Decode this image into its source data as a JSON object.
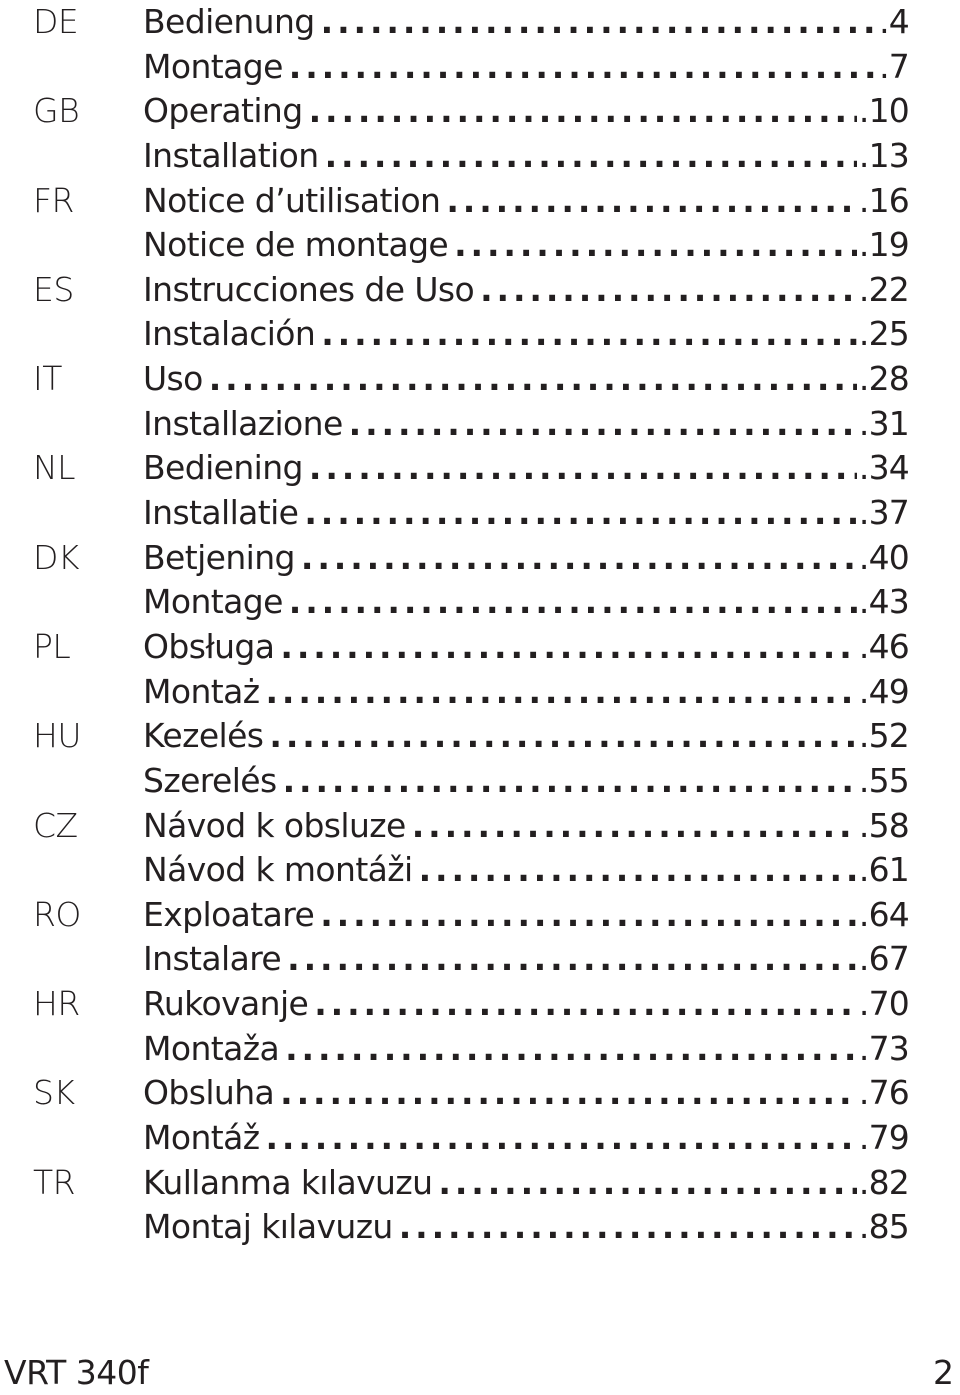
{
  "toc": [
    {
      "code": "DE",
      "title": "Bedienung",
      "page": ".4"
    },
    {
      "code": "",
      "title": "Montage",
      "page": ".7"
    },
    {
      "code": "GB",
      "title": "Operating",
      "page": ".10"
    },
    {
      "code": "",
      "title": "Installation",
      "page": ".13"
    },
    {
      "code": "FR",
      "title": "Notice d’utilisation",
      "page": ".16"
    },
    {
      "code": "",
      "title": "Notice de montage",
      "page": ".19"
    },
    {
      "code": "ES",
      "title": "Instrucciones de Uso",
      "page": ".22"
    },
    {
      "code": "",
      "title": "Instalación",
      "page": ".25"
    },
    {
      "code": "IT",
      "title": "Uso",
      "page": ".28"
    },
    {
      "code": "",
      "title": "Installazione",
      "page": ".31"
    },
    {
      "code": "NL",
      "title": "Bediening",
      "page": ".34"
    },
    {
      "code": "",
      "title": "Installatie",
      "page": ".37"
    },
    {
      "code": "DK",
      "title": "Betjening",
      "page": ".40"
    },
    {
      "code": "",
      "title": "Montage",
      "page": ".43"
    },
    {
      "code": "PL",
      "title": "Obsługa",
      "page": ".46"
    },
    {
      "code": "",
      "title": "Montaż",
      "page": ".49"
    },
    {
      "code": "HU",
      "title": "Kezelés",
      "page": ".52"
    },
    {
      "code": "",
      "title": "Szerelés",
      "page": ".55"
    },
    {
      "code": "CZ",
      "title": "Návod k obsluze",
      "page": ".58"
    },
    {
      "code": "",
      "title": "Návod k montáži",
      "page": ".61"
    },
    {
      "code": "RO",
      "title": "Exploatare",
      "page": ".64"
    },
    {
      "code": "",
      "title": "Instalare",
      "page": ".67"
    },
    {
      "code": "HR",
      "title": "Rukovanje",
      "page": ".70"
    },
    {
      "code": "",
      "title": "Montaža",
      "page": ".73"
    },
    {
      "code": "SK",
      "title": "Obsluha",
      "page": ".76"
    },
    {
      "code": "",
      "title": "Montáž",
      "page": ".79"
    },
    {
      "code": "TR",
      "title": "Kullanma kılavuzu",
      "page": ".82"
    },
    {
      "code": "",
      "title": "Montaj kılavuzu",
      "page": ".85"
    }
  ],
  "footer": {
    "product": "VRT 340f",
    "page_number": "2"
  }
}
